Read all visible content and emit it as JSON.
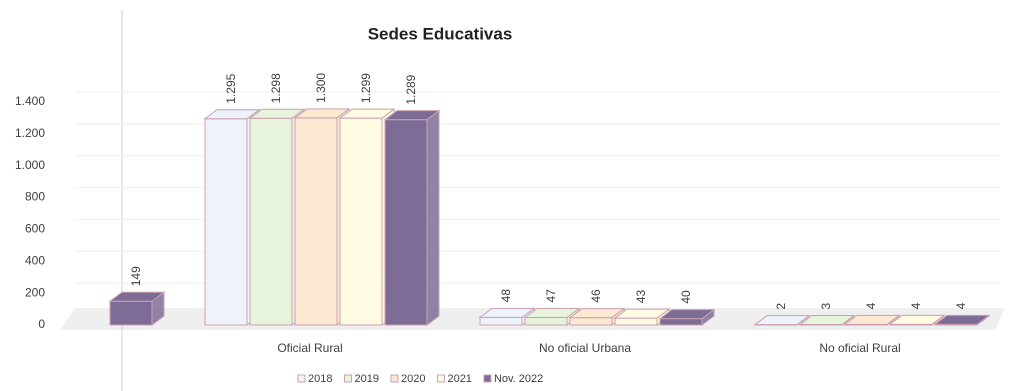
{
  "chart_data": {
    "type": "bar3d",
    "title": "Sedes Educativas",
    "categories": [
      null,
      "Oficial Rural",
      "No oficial Urbana",
      "No oficial Rural"
    ],
    "series": [
      {
        "name": "2018",
        "color": "#eef3fb",
        "values": [
          null,
          1295,
          48,
          2
        ],
        "value_labels": [
          null,
          "1.295",
          "48",
          "2"
        ]
      },
      {
        "name": "2019",
        "color": "#e8f3dc",
        "values": [
          null,
          1298,
          47,
          3
        ],
        "value_labels": [
          null,
          "1.298",
          "47",
          "3"
        ]
      },
      {
        "name": "2020",
        "color": "#fde8d2",
        "values": [
          null,
          1300,
          46,
          4
        ],
        "value_labels": [
          null,
          "1.300",
          "46",
          "4"
        ]
      },
      {
        "name": "2021",
        "color": "#fefbe2",
        "values": [
          null,
          1299,
          43,
          4
        ],
        "value_labels": [
          null,
          "1.299",
          "43",
          "4"
        ]
      },
      {
        "name": "Nov. 2022",
        "color": "#7d6d96",
        "values": [
          149,
          1289,
          40,
          4
        ],
        "value_labels": [
          "149",
          "1.289",
          "40",
          "4"
        ]
      }
    ],
    "ylim": [
      0,
      1400
    ],
    "yticks": [
      0,
      200,
      400,
      600,
      800,
      {
        "value": 1000,
        "label": "1.000"
      },
      {
        "value": 1200,
        "label": "1.200"
      },
      {
        "value": 1400,
        "label": "1.400"
      }
    ],
    "grid": true
  }
}
